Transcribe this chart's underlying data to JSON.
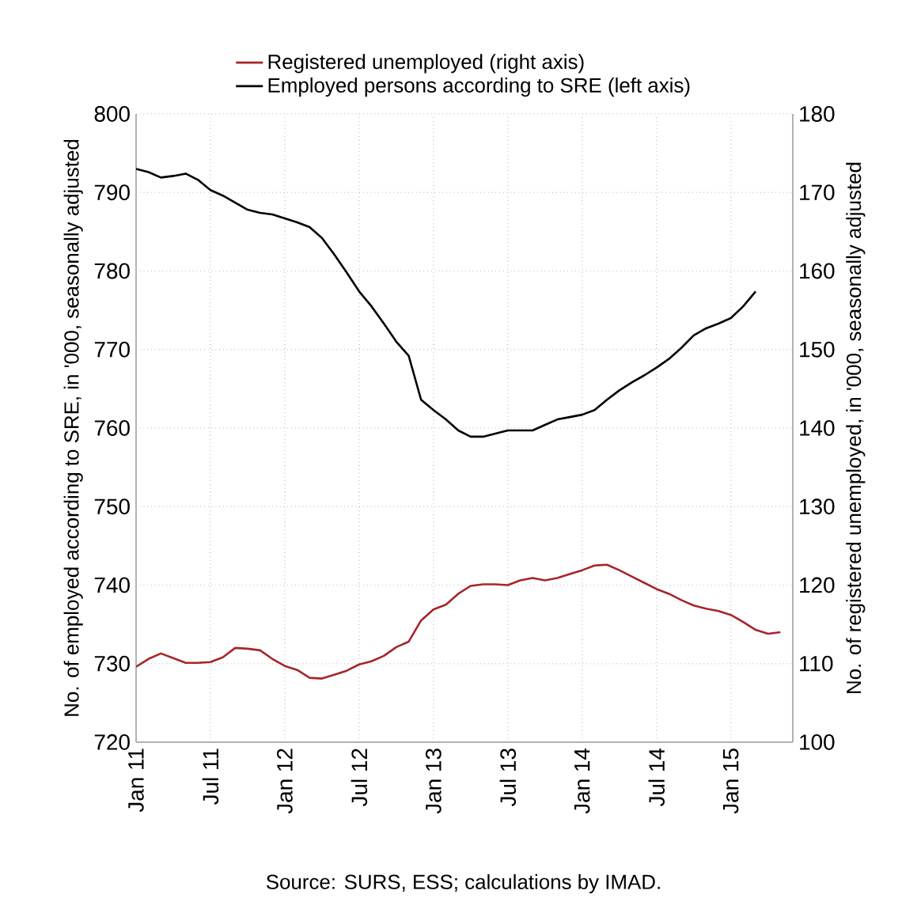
{
  "chart_data": {
    "type": "line",
    "ylabel": "No. of employed according to SRE, in '000, seasonally adjusted",
    "y2label": "No. of registered unemployed, in '000, seasonally adjusted",
    "annotations": [
      "Source: SURS, ESS; calculations by IMAD."
    ],
    "x": [
      "2011-01",
      "2011-02",
      "2011-03",
      "2011-04",
      "2011-05",
      "2011-06",
      "2011-07",
      "2011-08",
      "2011-09",
      "2011-10",
      "2011-11",
      "2011-12",
      "2012-01",
      "2012-02",
      "2012-03",
      "2012-04",
      "2012-05",
      "2012-06",
      "2012-07",
      "2012-08",
      "2012-09",
      "2012-10",
      "2012-11",
      "2012-12",
      "2013-01",
      "2013-02",
      "2013-03",
      "2013-04",
      "2013-05",
      "2013-06",
      "2013-07",
      "2013-08",
      "2013-09",
      "2013-10",
      "2013-11",
      "2013-12",
      "2014-01",
      "2014-02",
      "2014-03",
      "2014-04",
      "2014-05",
      "2014-06",
      "2014-07",
      "2014-08",
      "2014-09",
      "2014-10",
      "2014-11",
      "2014-12",
      "2015-01",
      "2015-02",
      "2015-03",
      "2015-04",
      "2015-05"
    ],
    "series": [
      {
        "name": "Employed persons according to SRE (left axis)",
        "color": "#000000",
        "values": [
          793.0,
          792.6,
          791.9,
          792.1,
          792.4,
          791.6,
          790.3,
          789.6,
          788.7,
          787.8,
          787.4,
          787.2,
          786.7,
          786.2,
          785.6,
          784.2,
          782.1,
          779.8,
          777.4,
          775.5,
          773.3,
          771.0,
          769.2,
          763.6,
          762.3,
          761.1,
          759.7,
          758.9,
          758.9,
          759.3,
          759.7,
          759.7,
          759.7,
          760.4,
          761.1,
          761.4,
          761.7,
          762.3,
          763.6,
          764.8,
          765.8,
          766.7,
          767.7,
          768.8,
          770.2,
          771.8,
          772.7,
          773.3,
          774.0,
          775.5,
          777.4,
          null,
          null
        ]
      },
      {
        "name": "Registered unemployed (right axis)",
        "color": "#a6262b",
        "axis": "y2",
        "values": [
          109.6,
          110.6,
          111.3,
          110.7,
          110.1,
          110.1,
          110.2,
          110.8,
          112.0,
          111.9,
          111.7,
          110.6,
          109.7,
          109.2,
          108.2,
          108.1,
          108.6,
          109.1,
          109.9,
          110.3,
          111.0,
          112.1,
          112.8,
          115.5,
          116.9,
          117.5,
          118.9,
          119.9,
          120.1,
          120.1,
          120.0,
          120.6,
          120.9,
          120.6,
          120.9,
          121.4,
          121.9,
          122.5,
          122.6,
          121.9,
          121.1,
          120.3,
          119.5,
          118.9,
          118.1,
          117.4,
          117.0,
          116.7,
          116.2,
          115.3,
          114.3,
          113.8,
          114.0
        ]
      }
    ],
    "xlim": [
      "2011-01",
      "2015-06"
    ],
    "xticks": [
      {
        "value": "2011-01",
        "label": "Jan 11"
      },
      {
        "value": "2011-07",
        "label": "Jul 11"
      },
      {
        "value": "2012-01",
        "label": "Jan 12"
      },
      {
        "value": "2012-07",
        "label": "Jul 12"
      },
      {
        "value": "2013-01",
        "label": "Jan 13"
      },
      {
        "value": "2013-07",
        "label": "Jul 13"
      },
      {
        "value": "2014-01",
        "label": "Jan 14"
      },
      {
        "value": "2014-07",
        "label": "Jul 14"
      },
      {
        "value": "2015-01",
        "label": "Jan 15"
      }
    ],
    "ylim": [
      720,
      800
    ],
    "yticks": [
      720,
      730,
      740,
      750,
      760,
      770,
      780,
      790,
      800
    ],
    "y2lim": [
      100,
      180
    ],
    "y2ticks": [
      100,
      110,
      120,
      130,
      140,
      150,
      160,
      170,
      180
    ],
    "grid": true,
    "legend": "top",
    "marker": "none",
    "line_style": "solid"
  }
}
